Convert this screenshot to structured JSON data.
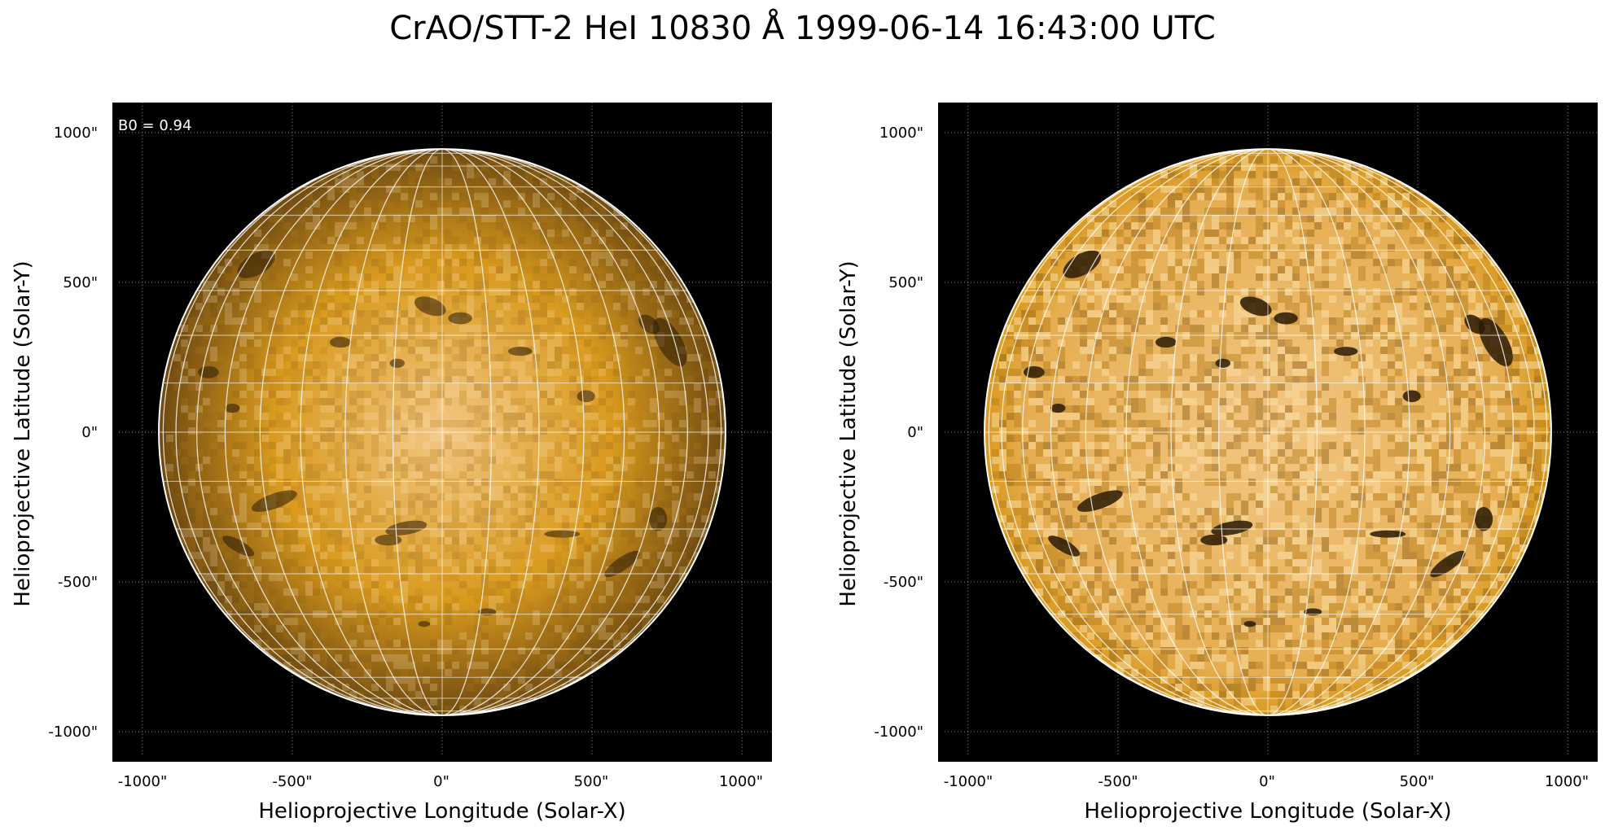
{
  "title": "CrAO/STT-2 HeI 10830 Å 1999-06-14 16:43:00 UTC",
  "colors": {
    "sun_light": "#f2c784",
    "sun_mid": "#d99a1e",
    "sun_dark": "#6e4a10",
    "background": "#000000",
    "grid": "#ffffff"
  },
  "panels": [
    {
      "name": "left",
      "annotation": "B0 = 0.94",
      "xlabel": "Helioprojective Longitude (Solar-X)",
      "ylabel": "Helioprojective Latitude (Solar-Y)",
      "xticks": [
        "-1000\"",
        "-500\"",
        "0\"",
        "500\"",
        "1000\""
      ],
      "yticks": [
        "1000\"",
        "500\"",
        "0\"",
        "-500\"",
        "-1000\""
      ],
      "xlim": [
        -1100,
        1100
      ],
      "ylim": [
        -1100,
        1100
      ],
      "solar_radius_arcsec": 945,
      "b0_deg": 0.94
    },
    {
      "name": "right",
      "annotation": "",
      "xlabel": "Helioprojective Longitude (Solar-X)",
      "ylabel": "Helioprojective Latitude (Solar-Y)",
      "xticks": [
        "-1000\"",
        "-500\"",
        "0\"",
        "500\"",
        "1000\""
      ],
      "yticks": [
        "1000\"",
        "500\"",
        "0\"",
        "-500\"",
        "-1000\""
      ],
      "xlim": [
        -1100,
        1100
      ],
      "ylim": [
        -1100,
        1100
      ],
      "solar_radius_arcsec": 945,
      "b0_deg": 0.94
    }
  ]
}
